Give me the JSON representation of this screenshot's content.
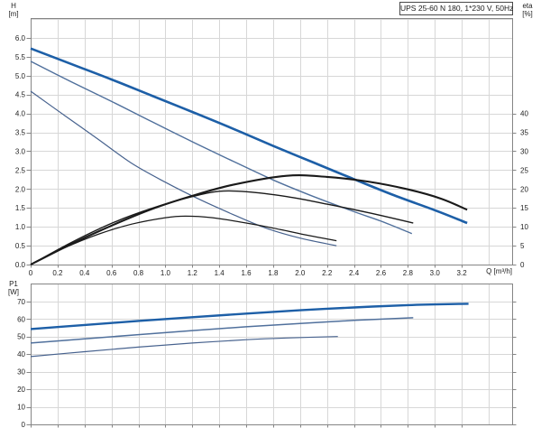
{
  "title_box": {
    "label": "UPS 25-60 N 180, 1*230 V, 50Hz"
  },
  "colors": {
    "speed3_blue": "#1d5fa7",
    "speed2_blue": "#50709c",
    "speed1_blue": "#47628e",
    "eta_black": "#1a1a1a",
    "grid": "#d7d7d7",
    "frame": "#858585",
    "text": "#222222"
  },
  "chart_data": [
    {
      "type": "line",
      "name": "hq-eta-chart",
      "title": "UPS 25-60 N 180, 1*230 V, 50Hz",
      "xlabel": "Q [m³/h]",
      "ylabel_left": [
        "H",
        "[m]"
      ],
      "ylabel_right": [
        "eta",
        "[%]"
      ],
      "xlim": [
        0,
        3.574
      ],
      "ylim_left": [
        0,
        6.525
      ],
      "ylim_right": [
        0,
        65.25
      ],
      "grid": true,
      "x_ticks": [
        0,
        0.2,
        0.4,
        0.6,
        0.8,
        1.0,
        1.2,
        1.4,
        1.6,
        1.8,
        2.0,
        2.2,
        2.4,
        2.6,
        2.8,
        3.0,
        3.2
      ],
      "x_tick_labels": [
        "0",
        "0.2",
        "0.4",
        "0.6",
        "0.8",
        "1.0",
        "1.2",
        "1.4",
        "1.6",
        "1.8",
        "2.0",
        "2.2",
        "2.4",
        "2.6",
        "2.8",
        "3.0",
        "3.2"
      ],
      "x_grid": [
        0.2,
        0.4,
        0.6,
        0.8,
        1.0,
        1.2,
        1.4,
        1.6,
        1.8,
        2.0,
        2.2,
        2.4,
        2.6,
        2.8,
        3.0,
        3.2,
        3.4
      ],
      "y_ticks_left": [
        0,
        0.5,
        1.0,
        1.5,
        2.0,
        2.5,
        3.0,
        3.5,
        4.0,
        4.5,
        5.0,
        5.5,
        6.0
      ],
      "y_tick_labels_left": [
        "0.0",
        "0.5",
        "1.0",
        "1.5",
        "2.0",
        "2.5",
        "3.0",
        "3.5",
        "4.0",
        "4.5",
        "5.0",
        "5.5",
        "6.0"
      ],
      "y_ticks_right": [
        0,
        5,
        10,
        15,
        20,
        25,
        30,
        35,
        40
      ],
      "y_tick_labels_right": [
        "0",
        "5",
        "10",
        "15",
        "20",
        "25",
        "30",
        "35",
        "40"
      ],
      "y_grid": [
        0.5,
        1.0,
        1.5,
        2.0,
        2.5,
        3.0,
        3.5,
        4.0,
        4.5,
        5.0,
        5.5,
        6.0,
        6.5
      ],
      "series": [
        {
          "name": "h-curve-speed3",
          "axis": "left",
          "color_key": "speed3_blue",
          "width": 2.6,
          "points": [
            [
              0,
              5.72
            ],
            [
              0.3,
              5.31
            ],
            [
              0.6,
              4.9
            ],
            [
              0.9,
              4.47
            ],
            [
              1.2,
              4.04
            ],
            [
              1.5,
              3.6
            ],
            [
              1.8,
              3.14
            ],
            [
              2.1,
              2.7
            ],
            [
              2.4,
              2.26
            ],
            [
              2.7,
              1.83
            ],
            [
              3.0,
              1.44
            ],
            [
              3.24,
              1.1
            ]
          ]
        },
        {
          "name": "h-curve-speed2",
          "axis": "left",
          "color_key": "speed2_blue",
          "width": 1.4,
          "points": [
            [
              0,
              5.38
            ],
            [
              0.3,
              4.84
            ],
            [
              0.6,
              4.32
            ],
            [
              0.9,
              3.78
            ],
            [
              1.2,
              3.25
            ],
            [
              1.5,
              2.74
            ],
            [
              1.8,
              2.24
            ],
            [
              2.1,
              1.8
            ],
            [
              2.4,
              1.4
            ],
            [
              2.6,
              1.15
            ],
            [
              2.83,
              0.82
            ]
          ]
        },
        {
          "name": "h-curve-speed1",
          "axis": "left",
          "color_key": "speed1_blue",
          "width": 1.2,
          "points": [
            [
              0,
              4.59
            ],
            [
              0.25,
              3.95
            ],
            [
              0.5,
              3.32
            ],
            [
              0.75,
              2.68
            ],
            [
              1.0,
              2.18
            ],
            [
              1.25,
              1.73
            ],
            [
              1.5,
              1.33
            ],
            [
              1.75,
              0.96
            ],
            [
              2.0,
              0.7
            ],
            [
              2.27,
              0.5
            ]
          ]
        },
        {
          "name": "eta-curve-speed3",
          "axis": "right",
          "color_key": "eta_black",
          "width": 2.1,
          "points": [
            [
              0,
              0
            ],
            [
              0.3,
              5.4
            ],
            [
              0.6,
              10.3
            ],
            [
              0.9,
              14.7
            ],
            [
              1.2,
              18.2
            ],
            [
              1.5,
              21.1
            ],
            [
              1.9,
              23.5
            ],
            [
              2.2,
              23.2
            ],
            [
              2.5,
              22.0
            ],
            [
              2.8,
              19.9
            ],
            [
              3.05,
              17.4
            ],
            [
              3.24,
              14.5
            ]
          ]
        },
        {
          "name": "eta-curve-speed2",
          "axis": "right",
          "color_key": "eta_black",
          "width": 1.4,
          "points": [
            [
              0,
              0
            ],
            [
              0.3,
              5.8
            ],
            [
              0.6,
              10.9
            ],
            [
              0.9,
              14.9
            ],
            [
              1.2,
              18.0
            ],
            [
              1.4,
              19.4
            ],
            [
              1.6,
              19.3
            ],
            [
              1.9,
              18.0
            ],
            [
              2.2,
              16.0
            ],
            [
              2.5,
              13.8
            ],
            [
              2.84,
              11.0
            ]
          ]
        },
        {
          "name": "eta-curve-speed1",
          "axis": "right",
          "color_key": "eta_black",
          "width": 1.2,
          "points": [
            [
              0,
              0
            ],
            [
              0.25,
              4.4
            ],
            [
              0.5,
              8.0
            ],
            [
              0.75,
              10.7
            ],
            [
              1.0,
              12.4
            ],
            [
              1.15,
              12.8
            ],
            [
              1.35,
              12.4
            ],
            [
              1.6,
              11.0
            ],
            [
              1.85,
              9.3
            ],
            [
              2.05,
              7.8
            ],
            [
              2.27,
              6.3
            ]
          ]
        }
      ]
    },
    {
      "type": "line",
      "name": "p1-chart",
      "title": "",
      "xlabel": "",
      "ylabel_left": [
        "P1",
        "[W]"
      ],
      "xlim": [
        0,
        3.574
      ],
      "ylim_left": [
        0,
        80.2
      ],
      "grid": true,
      "x_ticks": [
        0,
        0.2,
        0.4,
        0.6,
        0.8,
        1.0,
        1.2,
        1.4,
        1.6,
        1.8,
        2.0,
        2.2,
        2.4,
        2.6,
        2.8,
        3.0,
        3.2
      ],
      "x_tick_labels": null,
      "x_grid": [
        0.2,
        0.4,
        0.6,
        0.8,
        1.0,
        1.2,
        1.4,
        1.6,
        1.8,
        2.0,
        2.2,
        2.4,
        2.6,
        2.8,
        3.0,
        3.2,
        3.4
      ],
      "y_ticks_left": [
        0,
        10,
        20,
        30,
        40,
        50,
        60,
        70
      ],
      "y_tick_labels_left": [
        "0",
        "10",
        "20",
        "30",
        "40",
        "50",
        "60",
        "70"
      ],
      "y_ticks_right": [
        0,
        10,
        20,
        30,
        40,
        50,
        60,
        70
      ],
      "y_tick_labels_right": null,
      "y_grid": [
        10,
        20,
        30,
        40,
        50,
        60,
        70
      ],
      "series": [
        {
          "name": "p1-curve-speed3",
          "axis": "left",
          "color_key": "speed3_blue",
          "width": 2.4,
          "points": [
            [
              0,
              54.3
            ],
            [
              0.4,
              56.6
            ],
            [
              0.8,
              58.9
            ],
            [
              1.2,
              61.0
            ],
            [
              1.6,
              63.1
            ],
            [
              2.0,
              65.0
            ],
            [
              2.4,
              66.6
            ],
            [
              2.8,
              67.9
            ],
            [
              3.1,
              68.5
            ],
            [
              3.25,
              68.7
            ]
          ]
        },
        {
          "name": "p1-curve-speed2",
          "axis": "left",
          "color_key": "speed2_blue",
          "width": 1.5,
          "points": [
            [
              0,
              46.3
            ],
            [
              0.4,
              48.7
            ],
            [
              0.8,
              51.1
            ],
            [
              1.2,
              53.4
            ],
            [
              1.6,
              55.6
            ],
            [
              2.0,
              57.5
            ],
            [
              2.4,
              59.2
            ],
            [
              2.84,
              60.7
            ]
          ]
        },
        {
          "name": "p1-curve-speed1",
          "axis": "left",
          "color_key": "speed1_blue",
          "width": 1.2,
          "points": [
            [
              0,
              38.6
            ],
            [
              0.4,
              41.4
            ],
            [
              0.8,
              44.0
            ],
            [
              1.2,
              46.3
            ],
            [
              1.6,
              48.2
            ],
            [
              1.9,
              49.2
            ],
            [
              2.28,
              50.0
            ]
          ]
        }
      ]
    }
  ]
}
